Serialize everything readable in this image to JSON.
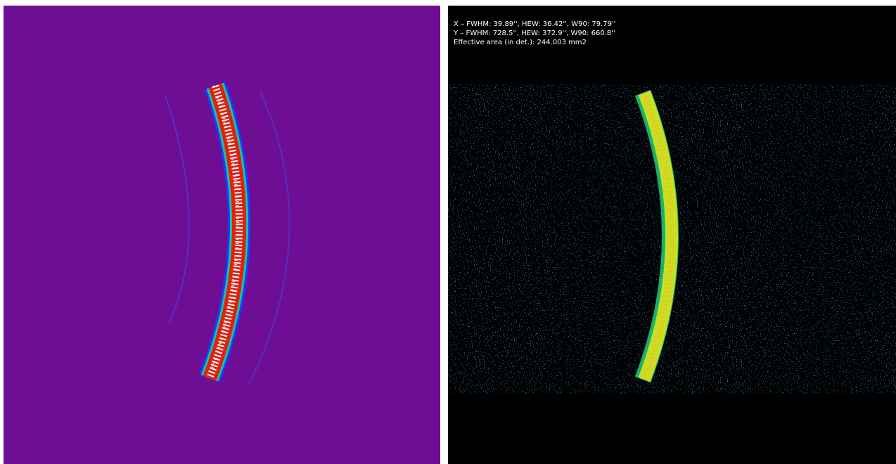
{
  "annotation": {
    "lines": [
      "X – FWHM: 39.89'', HEW: 36.42'', W90: 79.79''",
      "Y – FWHM: 728.5'', HEW: 372.9'', W90: 660.8''",
      "Effective area (in det.): 244.003 mm2"
    ]
  }
}
